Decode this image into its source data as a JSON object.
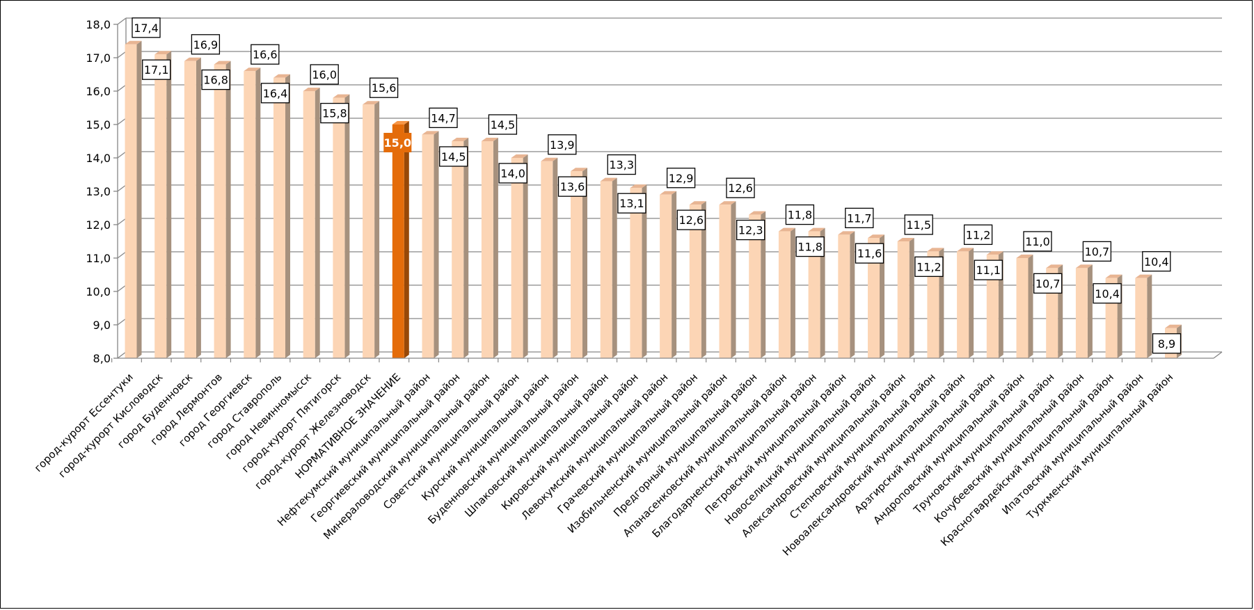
{
  "chart_data": {
    "type": "bar",
    "title": "",
    "xlabel": "",
    "ylabel": "",
    "ylim": [
      8.0,
      18.0
    ],
    "yticks": [
      "8,0",
      "9,0",
      "10,0",
      "11,0",
      "12,0",
      "13,0",
      "14,0",
      "15,0",
      "16,0",
      "17,0",
      "18,0"
    ],
    "grid": true,
    "legend": "none",
    "categories": [
      "город-курорт Ессентуки",
      "город-курорт Кисловодск",
      "город Буденновск",
      "город Лермонтов",
      "город Георгиевск",
      "город Ставрополь",
      "город Невинномысск",
      "город-курорт Пятигорск",
      "город-курорт Железноводск",
      "НОРМАТИВНОЕ ЗНАЧЕНИЕ",
      "Нефтекумский муниципальный район",
      "Георгиевский муниципальный район",
      "Минераловодский муниципальный район",
      "Советский муниципальный район",
      "Курский муниципальный район",
      "Буденновский муниципальный район",
      "Шпаковский муниципальный район",
      "Кировский муниципальный район",
      "Левокумский муниципальный район",
      "Грачевский муниципальный район",
      "Изобильненский муниципальный район",
      "Предгорный муниципальный район",
      "Апанасенковский муниципальный район",
      "Благодарненский муниципальный район",
      "Петровский муниципальный район",
      "Новоселицкий муниципальный район",
      "Александровский муниципальный район",
      "Степновский муниципальный район",
      "Новоалександровский муниципальный район",
      "Арзгирский муниципальный район",
      "Андроповский муниципальный район",
      "Труновский муниципальный район",
      "Кочубеевский муниципальный район",
      "Красногвардейский муниципальный район",
      "Ипатовский муниципальный район",
      "Туркменский муниципальный район"
    ],
    "values": [
      17.4,
      17.1,
      16.9,
      16.8,
      16.6,
      16.4,
      16.0,
      15.8,
      15.6,
      15.0,
      14.7,
      14.5,
      14.5,
      14.0,
      13.9,
      13.6,
      13.3,
      13.1,
      12.9,
      12.6,
      12.6,
      12.3,
      11.8,
      11.8,
      11.7,
      11.6,
      11.5,
      11.2,
      11.2,
      11.1,
      11.0,
      10.7,
      10.7,
      10.4,
      10.4,
      8.9
    ],
    "value_labels": [
      "17,4",
      "17,1",
      "16,9",
      "16,8",
      "16,6",
      "16,4",
      "16,0",
      "15,8",
      "15,6",
      "15,0",
      "14,7",
      "14,5",
      "14,5",
      "14,0",
      "13,9",
      "13,6",
      "13,3",
      "13,1",
      "12,9",
      "12,6",
      "12,6",
      "12,3",
      "11,8",
      "11,8",
      "11,7",
      "11,6",
      "11,5",
      "11,2",
      "11,2",
      "11,1",
      "11,0",
      "10,7",
      "10,7",
      "10,4",
      "10,4",
      "8,9"
    ],
    "highlight_index": 9,
    "colors": {
      "bar": "#fcd5b5",
      "bar_side": "#a6917e",
      "bar_top": "#e8b593",
      "highlight": "#e46c0a",
      "highlight_side": "#984807",
      "highlight_top": "#f79646",
      "grid": "#868686",
      "axis": "#868686"
    }
  }
}
